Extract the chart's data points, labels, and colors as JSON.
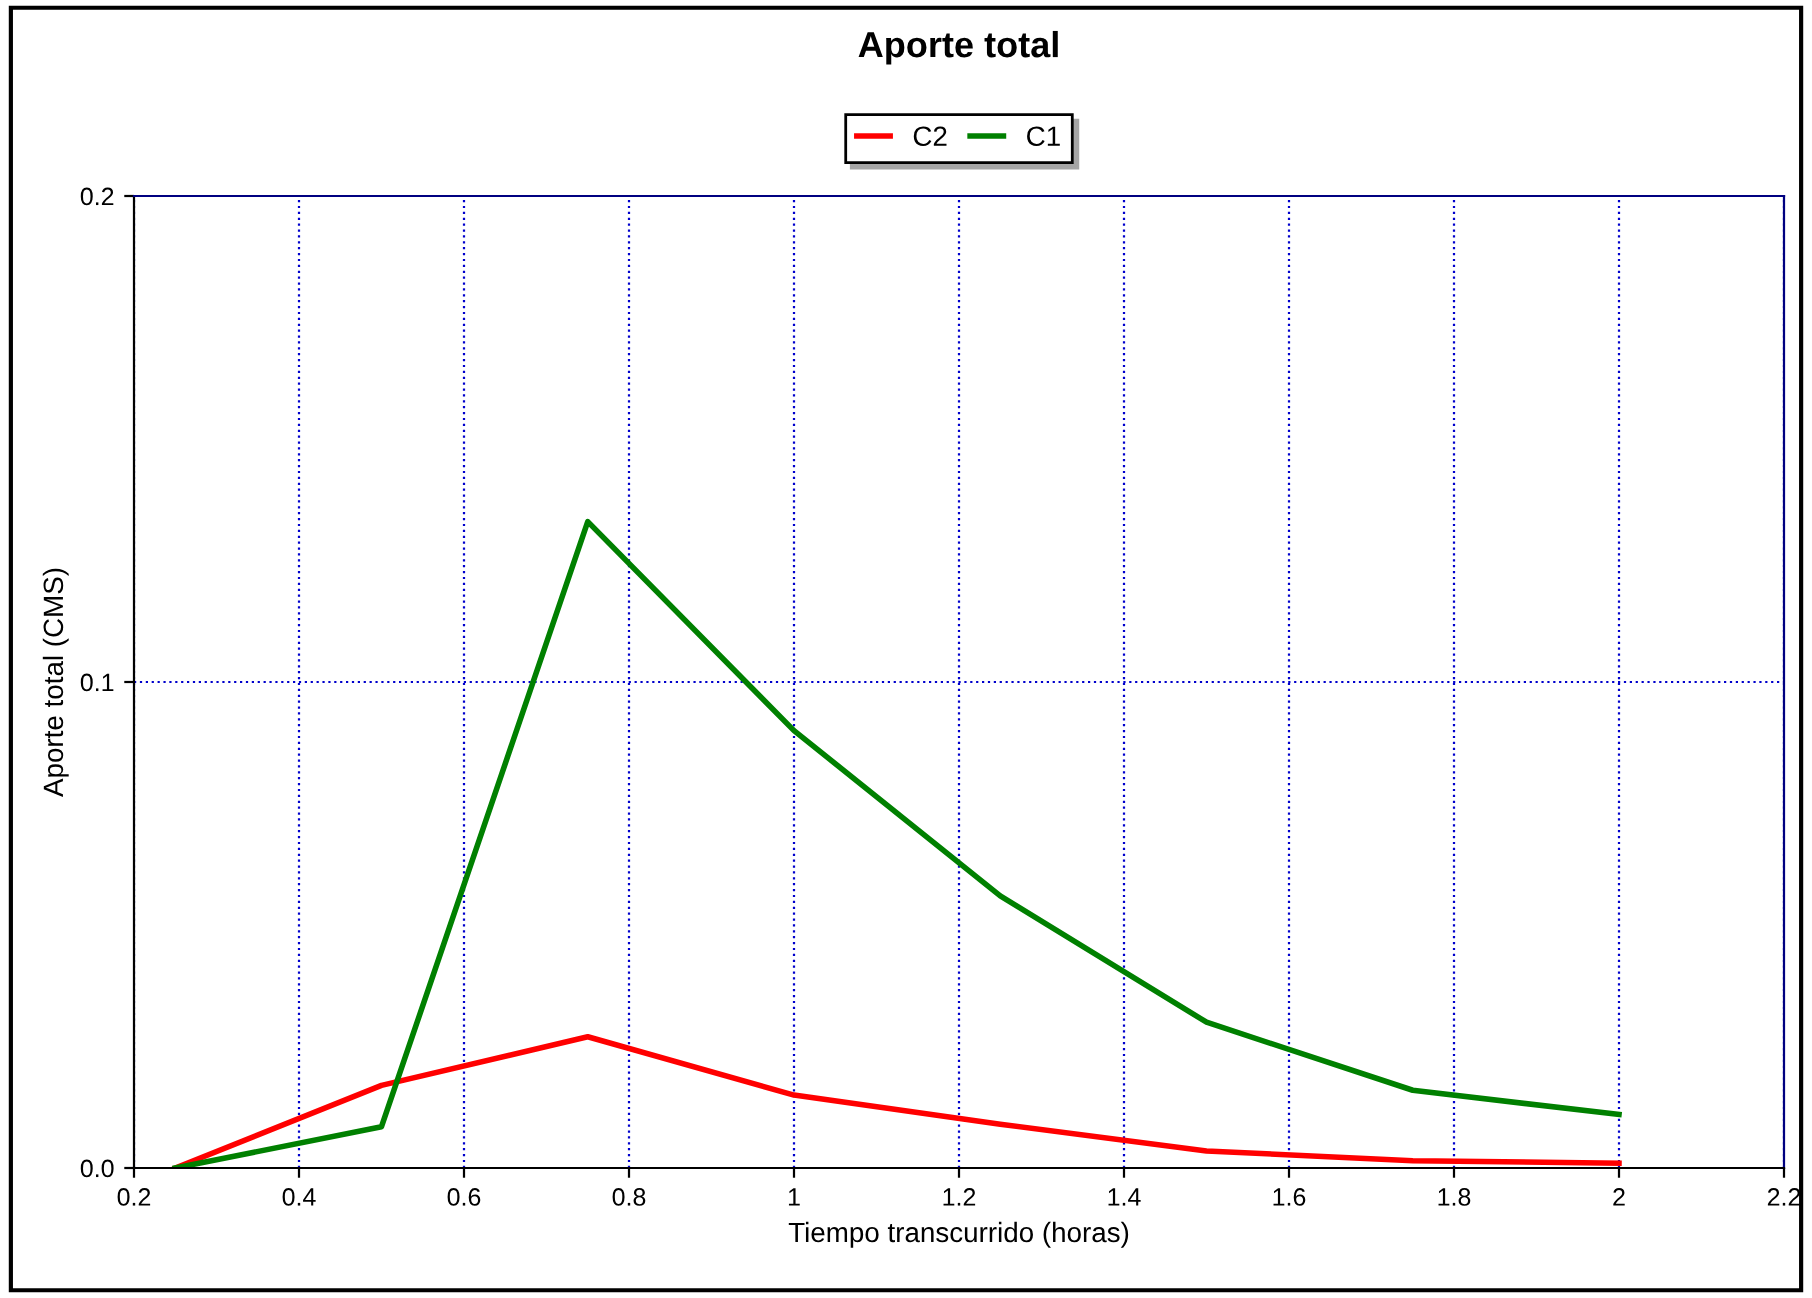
{
  "chart_data": {
    "type": "line",
    "title": "Aporte total",
    "xlabel": "Tiempo transcurrido (horas)",
    "ylabel": "Aporte total (CMS)",
    "x": [
      0.25,
      0.5,
      0.75,
      1.0,
      1.25,
      1.5,
      1.75,
      2.0
    ],
    "series": [
      {
        "name": "C2",
        "color": "#ff0000",
        "values": [
          0,
          0.017,
          0.027,
          0.015,
          0.009,
          0.0035,
          0.0015,
          0.001
        ]
      },
      {
        "name": "C1",
        "color": "#008000",
        "values": [
          0,
          0.0085,
          0.133,
          0.09,
          0.056,
          0.03,
          0.016,
          0.011
        ]
      }
    ],
    "xlim": [
      0.2,
      2.2
    ],
    "xticks": [
      0.2,
      0.4,
      0.6,
      0.8,
      1,
      1.2,
      1.4,
      1.6,
      1.8,
      2,
      2.2
    ],
    "ylim": [
      0,
      0.2
    ],
    "yticks": [
      {
        "value": 0,
        "label": "0.0"
      },
      {
        "value": 0.1,
        "label": "0.1"
      },
      {
        "value": 0.2,
        "label": "0.2"
      }
    ],
    "grid": true,
    "legend": "top",
    "marker": "none",
    "line_style": "solid"
  }
}
